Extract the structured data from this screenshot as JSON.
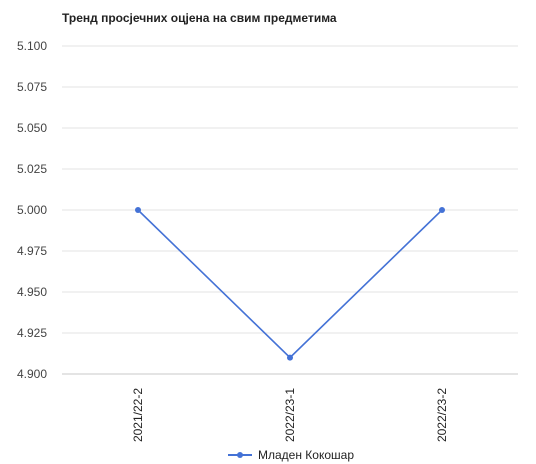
{
  "chart_data": {
    "type": "line",
    "title": "Тренд просјечних оцјена на свим предметима",
    "categories": [
      "2021/22-2",
      "2022/23-1",
      "2022/23-2"
    ],
    "series": [
      {
        "name": "Младен Кокошар",
        "values": [
          5.0,
          4.91,
          5.0
        ]
      }
    ],
    "ylim": [
      4.9,
      5.1
    ],
    "yticks": [
      "5.100",
      "5.075",
      "5.050",
      "5.025",
      "5.000",
      "4.975",
      "4.950",
      "4.925",
      "4.900"
    ],
    "grid": true,
    "legend_position": "bottom",
    "colors": {
      "series": "#4472d6",
      "grid": "#e3e3e3"
    }
  }
}
